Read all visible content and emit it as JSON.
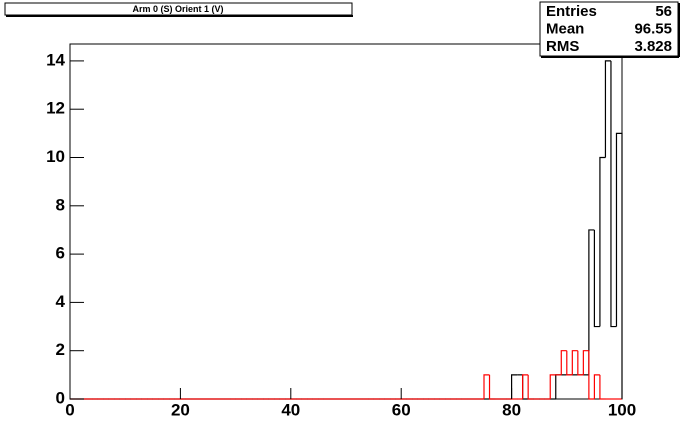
{
  "chart_data": {
    "type": "histogram",
    "title": "Arm 0 (S) Orient 1 (V)",
    "bins": [
      0,
      1,
      2,
      3,
      4,
      5,
      6,
      7,
      8,
      9,
      10,
      11,
      12,
      13,
      14,
      15,
      16,
      17,
      18,
      19,
      20,
      21,
      22,
      23,
      24,
      25,
      26,
      27,
      28,
      29,
      30,
      31,
      32,
      33,
      34,
      35,
      36,
      37,
      38,
      39,
      40,
      41,
      42,
      43,
      44,
      45,
      46,
      47,
      48,
      49,
      50,
      51,
      52,
      53,
      54,
      55,
      56,
      57,
      58,
      59,
      60,
      61,
      62,
      63,
      64,
      65,
      66,
      67,
      68,
      69,
      70,
      71,
      72,
      73,
      74,
      75,
      76,
      77,
      78,
      79,
      80,
      81,
      82,
      83,
      84,
      85,
      86,
      87,
      88,
      89,
      90,
      91,
      92,
      93,
      94,
      95,
      96,
      97,
      98,
      99,
      100
    ],
    "series": [
      {
        "color": "#000000",
        "values": [
          0,
          0,
          0,
          0,
          0,
          0,
          0,
          0,
          0,
          0,
          0,
          0,
          0,
          0,
          0,
          0,
          0,
          0,
          0,
          0,
          0,
          0,
          0,
          0,
          0,
          0,
          0,
          0,
          0,
          0,
          0,
          0,
          0,
          0,
          0,
          0,
          0,
          0,
          0,
          0,
          0,
          0,
          0,
          0,
          0,
          0,
          0,
          0,
          0,
          0,
          0,
          0,
          0,
          0,
          0,
          0,
          0,
          0,
          0,
          0,
          0,
          0,
          0,
          0,
          0,
          0,
          0,
          0,
          0,
          0,
          0,
          0,
          0,
          0,
          0,
          0,
          0,
          0,
          0,
          0,
          1,
          1,
          0,
          0,
          0,
          0,
          0,
          0,
          1,
          1,
          1,
          1,
          1,
          1,
          7,
          3,
          10,
          14,
          3,
          11
        ]
      },
      {
        "color": "#ff0000",
        "values": [
          0,
          0,
          0,
          0,
          0,
          0,
          0,
          0,
          0,
          0,
          0,
          0,
          0,
          0,
          0,
          0,
          0,
          0,
          0,
          0,
          0,
          0,
          0,
          0,
          0,
          0,
          0,
          0,
          0,
          0,
          0,
          0,
          0,
          0,
          0,
          0,
          0,
          0,
          0,
          0,
          0,
          0,
          0,
          0,
          0,
          0,
          0,
          0,
          0,
          0,
          0,
          0,
          0,
          0,
          0,
          0,
          0,
          0,
          0,
          0,
          0,
          0,
          0,
          0,
          0,
          0,
          0,
          0,
          0,
          0,
          0,
          0,
          0,
          0,
          0,
          1,
          0,
          0,
          0,
          0,
          0,
          0,
          1,
          0,
          0,
          0,
          0,
          1,
          1,
          2,
          1,
          2,
          1,
          2,
          0,
          1,
          0,
          0,
          0,
          0
        ]
      }
    ],
    "xlim": [
      0,
      100
    ],
    "ylim": [
      0,
      14.7
    ],
    "xticks": [
      0,
      20,
      40,
      60,
      80,
      100
    ],
    "yticks": [
      0,
      2,
      4,
      6,
      8,
      10,
      12,
      14
    ],
    "stats": [
      {
        "label": "Entries",
        "value": 56
      },
      {
        "label": "Mean",
        "value": 96.55
      },
      {
        "label": "RMS",
        "value": 3.828
      }
    ]
  }
}
